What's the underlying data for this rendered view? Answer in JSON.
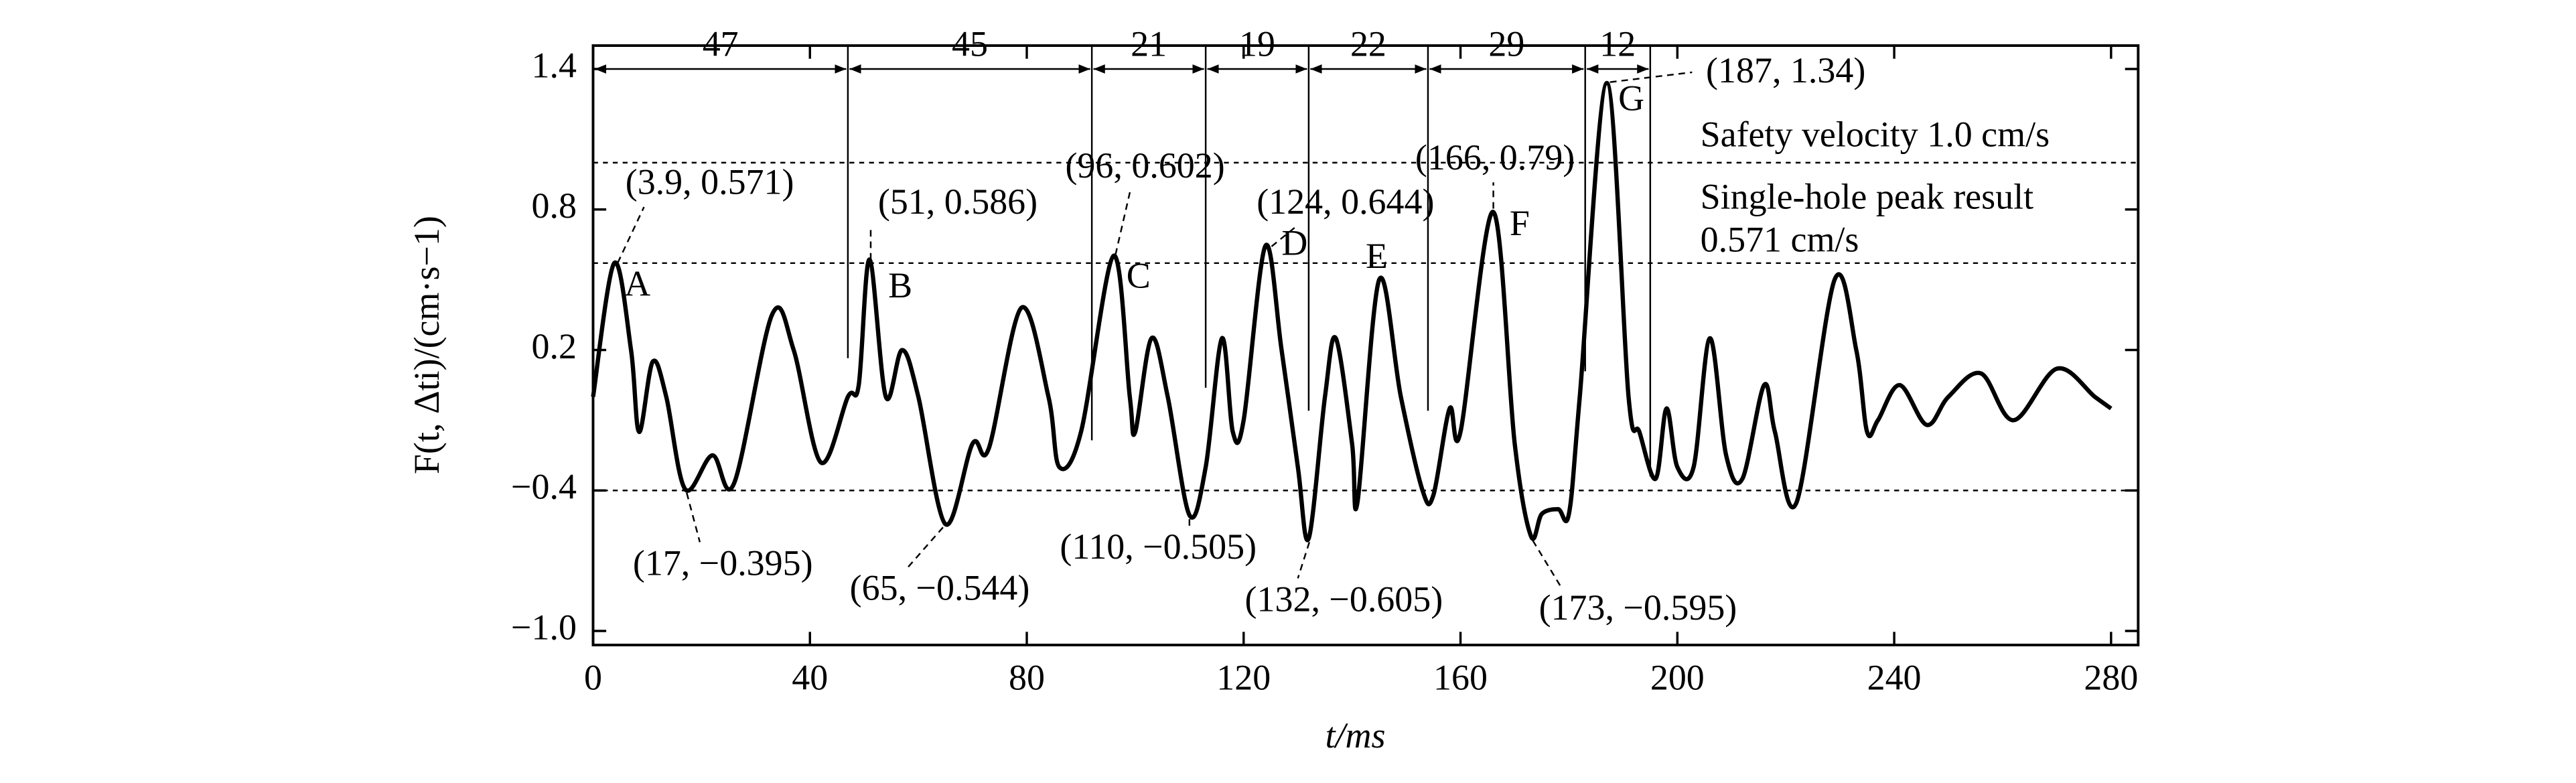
{
  "chart_data": {
    "type": "line",
    "x_label": "t/ms",
    "y_label": "F(t, Δti)/(cm·s−1)",
    "x": [
      0,
      3.9,
      7,
      8.5,
      11,
      13.5,
      17,
      22,
      26,
      33,
      37,
      42,
      47,
      49,
      51,
      54,
      57,
      60,
      65,
      70,
      73,
      79,
      84,
      86,
      90,
      96,
      99,
      100,
      103,
      106,
      110,
      113,
      116,
      118,
      120,
      124,
      127,
      130,
      132,
      135,
      137,
      140,
      141,
      145,
      149,
      153,
      155,
      158,
      160,
      166,
      170,
      173,
      175,
      178,
      180,
      182,
      187,
      191,
      193,
      196,
      198,
      200,
      203,
      206,
      209,
      212,
      216,
      218,
      222,
      229,
      233,
      235,
      237,
      241,
      246,
      250,
      256,
      262,
      270,
      277,
      280
    ],
    "series": [
      {
        "color": "#000000",
        "values": [
          0.0,
          0.571,
          0.2,
          -0.15,
          0.15,
          0.0,
          -0.395,
          -0.25,
          -0.37,
          0.35,
          0.2,
          -0.28,
          0.0,
          0.05,
          0.586,
          0.0,
          0.2,
          0.0,
          -0.544,
          -0.2,
          -0.22,
          0.38,
          0.0,
          -0.3,
          -0.15,
          0.602,
          0.0,
          -0.15,
          0.25,
          0.0,
          -0.505,
          -0.3,
          0.25,
          -0.15,
          -0.1,
          0.644,
          0.2,
          -0.3,
          -0.605,
          0.0,
          0.25,
          -0.2,
          -0.45,
          0.5,
          0.0,
          -0.4,
          -0.42,
          -0.05,
          -0.15,
          0.79,
          -0.2,
          -0.595,
          -0.5,
          -0.48,
          -0.5,
          0.0,
          1.34,
          0.0,
          -0.15,
          -0.35,
          -0.05,
          -0.3,
          -0.3,
          0.25,
          -0.25,
          -0.35,
          0.05,
          -0.15,
          -0.45,
          0.5,
          0.2,
          -0.15,
          -0.1,
          0.05,
          -0.12,
          0.0,
          0.1,
          -0.1,
          0.12,
          0.0,
          -0.05
        ]
      }
    ],
    "xlim": [
      0,
      285
    ],
    "ylim": [
      -1.06,
      1.5
    ],
    "xticks": [
      0,
      40,
      80,
      120,
      160,
      200,
      240,
      280
    ],
    "yticks": [
      {
        "value": -1.0,
        "label": "−1.0"
      },
      {
        "value": -0.4,
        "label": "−0.4"
      },
      0.2,
      0.8,
      1.4
    ],
    "reference_lines": [
      1.0,
      0.571,
      -0.4
    ],
    "reference_texts": [
      "Safety velocity 1.0 cm/s",
      "Single-hole peak result",
      "0.571 cm/s"
    ],
    "intervals": {
      "bounds": [
        0,
        47,
        92,
        113,
        132,
        154,
        183,
        195
      ],
      "labels": [
        47,
        45,
        21,
        19,
        22,
        29,
        12
      ]
    },
    "annotations": [
      "(3.9, 0.571)",
      "(51, 0.586)",
      "(96, 0.602)",
      "(124, 0.644)",
      "(166, 0.79)",
      "(187, 1.34)",
      "(17, −0.395)",
      "(65, −0.544)",
      "(110, −0.505)",
      "(132, −0.605)",
      "(173, −0.595)"
    ],
    "point_letters": [
      "A",
      "B",
      "C",
      "D",
      "E",
      "F",
      "G"
    ]
  }
}
